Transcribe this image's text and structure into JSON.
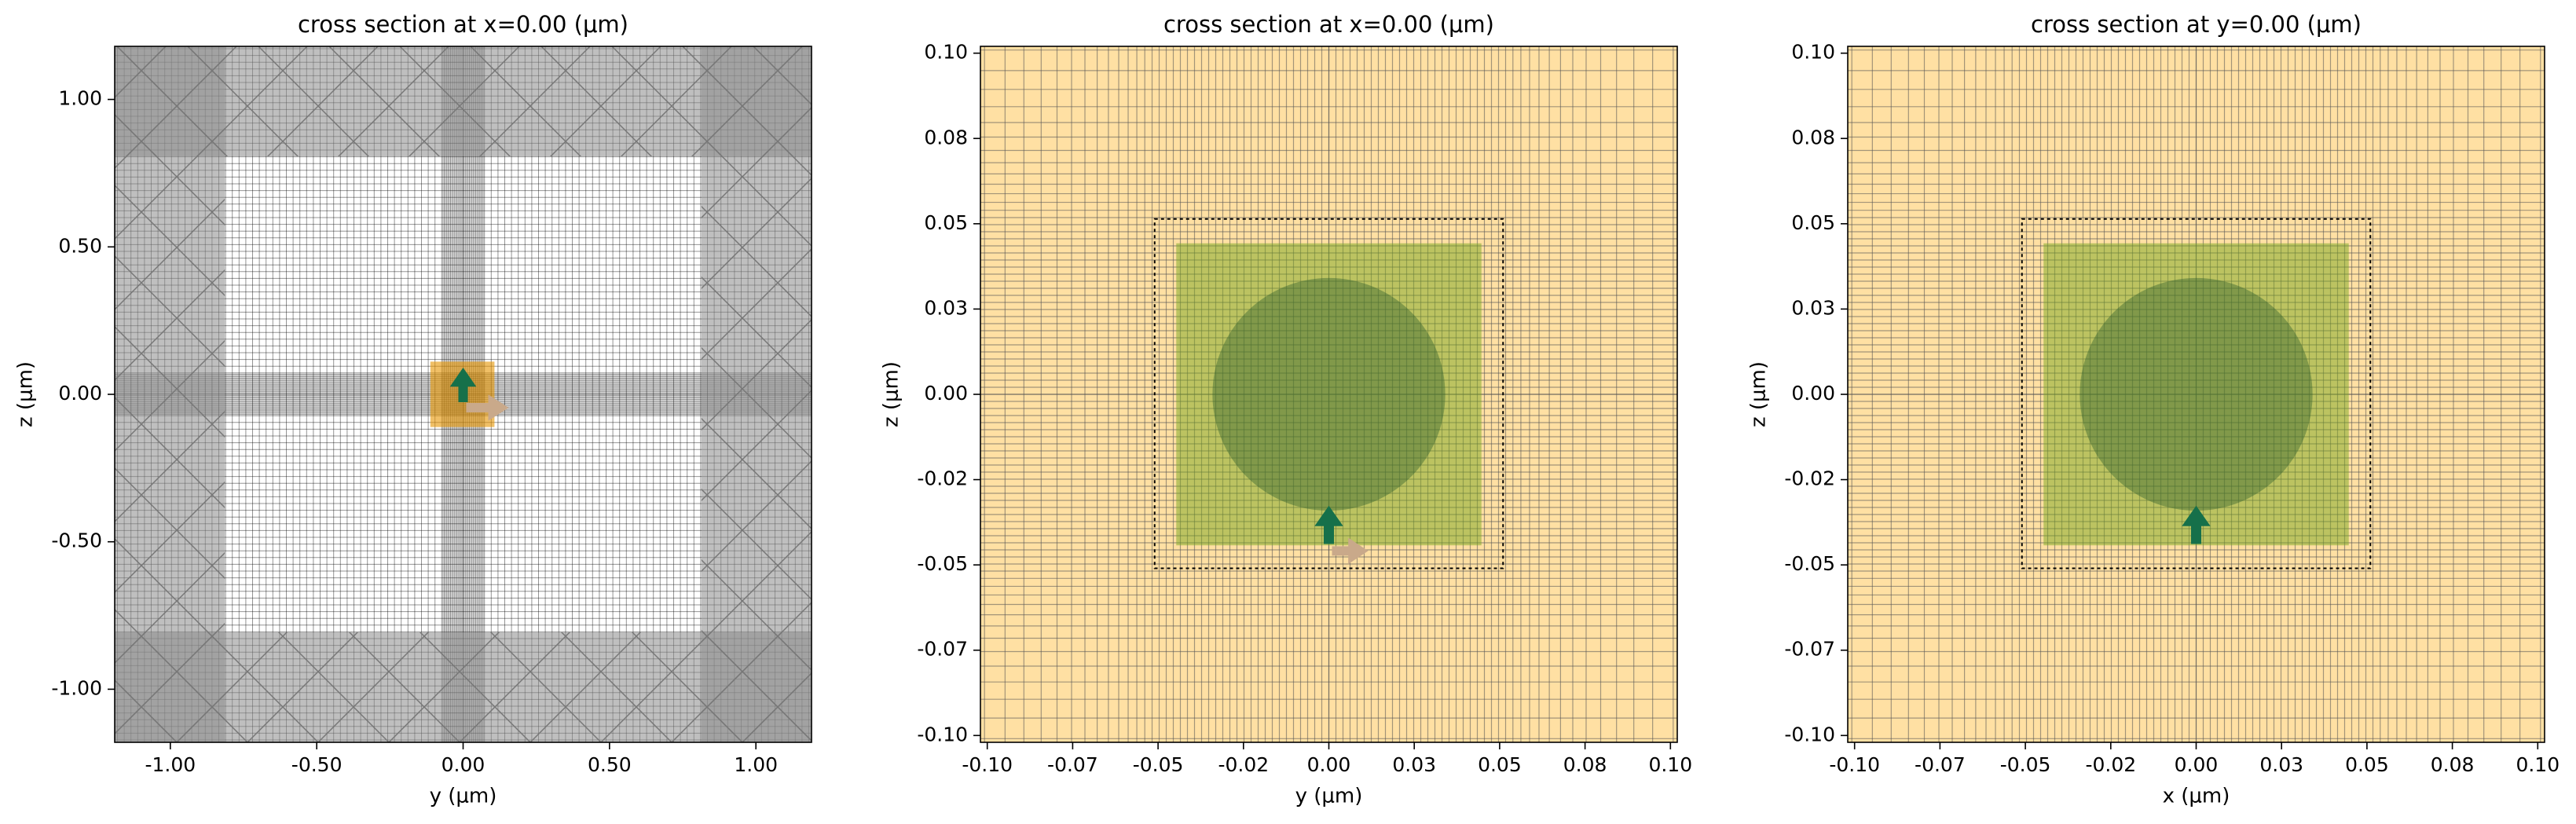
{
  "chart_data": [
    {
      "type": "mesh",
      "title": "cross section at x=0.00 (μm)",
      "x_label": "y (μm)",
      "y_label": "z (μm)",
      "xlim": [
        -1.19,
        1.19
      ],
      "ylim": [
        -1.18,
        1.18
      ],
      "xticks": [
        {
          "value": -1,
          "label": "-1.00"
        },
        {
          "value": -0.5,
          "label": "-0.50"
        },
        {
          "value": 0,
          "label": "0.00"
        },
        {
          "value": 0.5,
          "label": "0.50"
        },
        {
          "value": 1,
          "label": "1.00"
        }
      ],
      "yticks": [
        {
          "value": -1,
          "label": "-1.00"
        },
        {
          "value": -0.5,
          "label": "-0.50"
        },
        {
          "value": 0,
          "label": "0.00"
        },
        {
          "value": 0.5,
          "label": "0.50"
        },
        {
          "value": 1,
          "label": "1.00"
        }
      ]
    },
    {
      "type": "mesh",
      "title": "cross section at x=0.00 (μm)",
      "x_label": "y (μm)",
      "y_label": "z (μm)",
      "xlim": [
        -0.102,
        0.102
      ],
      "ylim": [
        -0.102,
        0.102
      ],
      "xticks": [
        {
          "value": -0.1,
          "label": "-0.10"
        },
        {
          "value": -0.075,
          "label": "-0.07"
        },
        {
          "value": -0.05,
          "label": "-0.05"
        },
        {
          "value": -0.025,
          "label": "-0.02"
        },
        {
          "value": 0,
          "label": "0.00"
        },
        {
          "value": 0.025,
          "label": "0.03"
        },
        {
          "value": 0.05,
          "label": "0.05"
        },
        {
          "value": 0.075,
          "label": "0.08"
        },
        {
          "value": 0.1,
          "label": "0.10"
        }
      ],
      "yticks": [
        {
          "value": -0.1,
          "label": "-0.10"
        },
        {
          "value": -0.075,
          "label": "-0.07"
        },
        {
          "value": -0.05,
          "label": "-0.05"
        },
        {
          "value": -0.025,
          "label": "-0.02"
        },
        {
          "value": 0,
          "label": "0.00"
        },
        {
          "value": 0.025,
          "label": "0.03"
        },
        {
          "value": 0.05,
          "label": "0.05"
        },
        {
          "value": 0.075,
          "label": "0.08"
        },
        {
          "value": 0.1,
          "label": "0.10"
        }
      ]
    },
    {
      "type": "mesh",
      "title": "cross section at y=0.00 (μm)",
      "x_label": "x (μm)",
      "y_label": "z (μm)",
      "xlim": [
        -0.102,
        0.102
      ],
      "ylim": [
        -0.102,
        0.102
      ],
      "xticks": [
        {
          "value": -0.1,
          "label": "-0.10"
        },
        {
          "value": -0.075,
          "label": "-0.07"
        },
        {
          "value": -0.05,
          "label": "-0.05"
        },
        {
          "value": -0.025,
          "label": "-0.02"
        },
        {
          "value": 0,
          "label": "0.00"
        },
        {
          "value": 0.025,
          "label": "0.03"
        },
        {
          "value": 0.05,
          "label": "0.05"
        },
        {
          "value": 0.075,
          "label": "0.08"
        },
        {
          "value": 0.1,
          "label": "0.10"
        }
      ],
      "yticks": [
        {
          "value": -0.1,
          "label": "-0.10"
        },
        {
          "value": -0.075,
          "label": "-0.07"
        },
        {
          "value": -0.05,
          "label": "-0.05"
        },
        {
          "value": -0.025,
          "label": "-0.02"
        },
        {
          "value": 0,
          "label": "0.00"
        },
        {
          "value": 0.025,
          "label": "0.03"
        },
        {
          "value": 0.05,
          "label": "0.05"
        },
        {
          "value": 0.075,
          "label": "0.08"
        },
        {
          "value": 0.1,
          "label": "0.10"
        }
      ]
    }
  ]
}
